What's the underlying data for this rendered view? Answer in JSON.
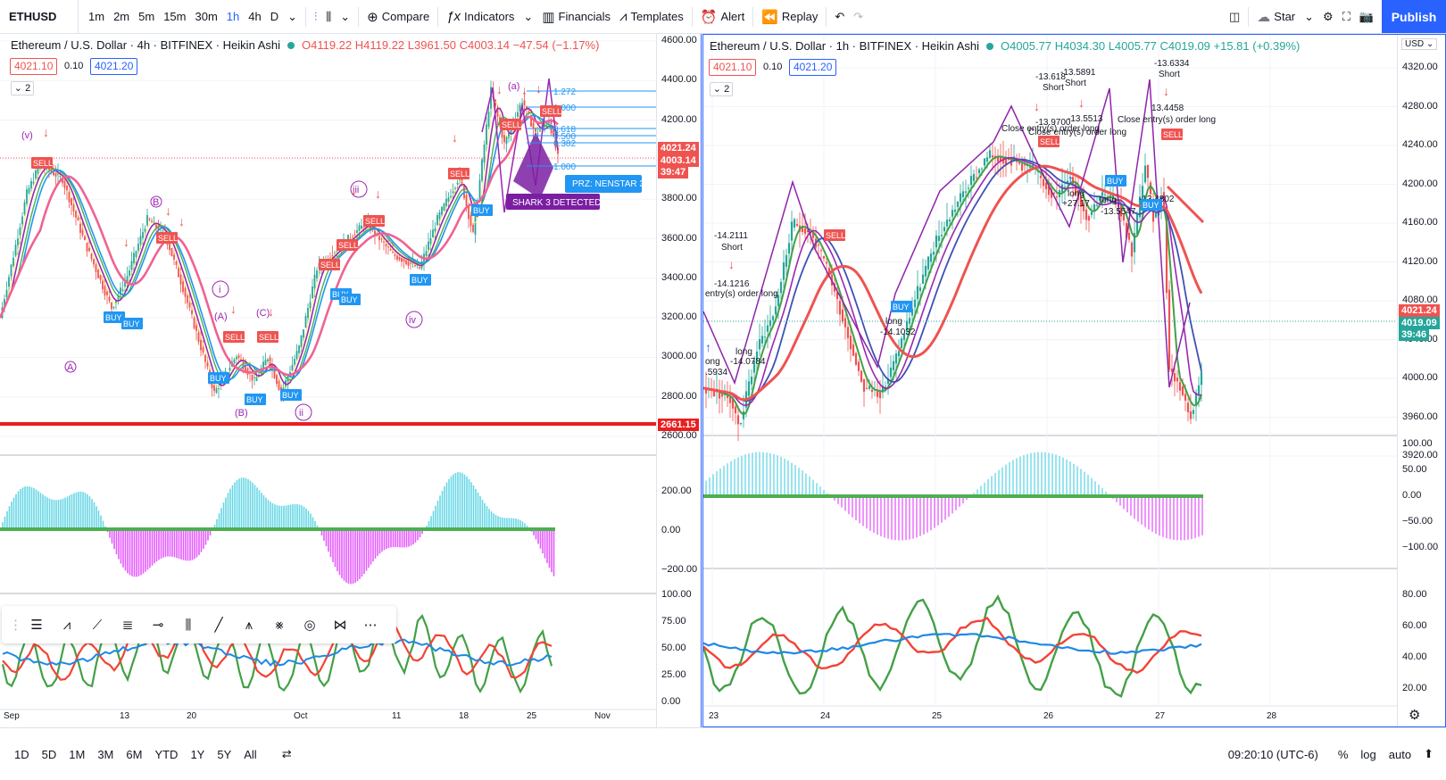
{
  "toolbar": {
    "symbol": "ETHUSD",
    "intervals": [
      "1m",
      "2m",
      "5m",
      "15m",
      "30m",
      "1h",
      "4h",
      "D"
    ],
    "active_interval": "1h",
    "compare": "Compare",
    "indicators": "Indicators",
    "financials": "Financials",
    "templates": "Templates",
    "alert": "Alert",
    "replay": "Replay",
    "star": "Star",
    "publish": "Publish"
  },
  "left": {
    "title": "Ethereum / U.S. Dollar · 4h · BITFINEX · Heikin Ashi",
    "ohlc": "O4119.22 H4119.22 L3961.50 C4003.14 −47.54 (−1.17%)",
    "sell_price": "4021.10",
    "spread": "0.10",
    "buy_price": "4021.20",
    "collapse": "2",
    "price_axis": [
      "4600.00",
      "4400.00",
      "4200.00",
      "4000.00",
      "3800.00",
      "3600.00",
      "3400.00",
      "3200.00",
      "3000.00",
      "2800.00",
      "2600.00"
    ],
    "last_price_tag": "4021.24",
    "close_tag": "4003.14",
    "countdown": "39:47",
    "red_line_tag": "2661.15",
    "osc_axis": [
      "200.00",
      "0.00",
      "−200.00"
    ],
    "rsi_axis": [
      "100.00",
      "75.00",
      "50.00",
      "25.00",
      "0.00"
    ],
    "time_axis": [
      "Sep",
      "13",
      "20",
      "Oct",
      "11",
      "18",
      "25",
      "Nov"
    ],
    "labels": {
      "v": "(v)",
      "B": "B",
      "A": "A",
      "i": "i",
      "iii": "iii",
      "iv": "iv",
      "ii": "ii",
      "a": "(a)",
      "b2": "(B)",
      "C": "(C)",
      "Aparen": "(A)",
      "prz": "PRZ: NENSTAR 3",
      "shark": "SHARK 3 DETECTED",
      "buy": "BUY",
      "sell": "SELL",
      "fib1": "1.272",
      "fib2": "1.000",
      "fib3": "0.618",
      "fib4": "0.500",
      "fib5": "0.382",
      "fib6": "1.000"
    }
  },
  "right": {
    "title": "Ethereum / U.S. Dollar · 1h · BITFINEX · Heikin Ashi",
    "ohlc": "O4005.77 H4034.30 L4005.77 C4019.09 +15.81 (+0.39%)",
    "sell_price": "4021.10",
    "spread": "0.10",
    "buy_price": "4021.20",
    "collapse": "2",
    "currency": "USD",
    "price_axis": [
      "4320.00",
      "4280.00",
      "4240.00",
      "4200.00",
      "4160.00",
      "4120.00",
      "4080.00",
      "4040.00",
      "4000.00",
      "3960.00",
      "3920.00"
    ],
    "last_price_tag": "4021.24",
    "close_tag": "4019.09",
    "countdown": "39:46",
    "osc_axis": [
      "100.00",
      "50.00",
      "0.00",
      "−50.00",
      "−100.00"
    ],
    "rsi_axis": [
      "80.00",
      "60.00",
      "40.00",
      "20.00"
    ],
    "time_axis": [
      "23",
      "24",
      "25",
      "26",
      "27",
      "28"
    ],
    "annotations": [
      "-14.2111",
      "Short",
      "-14.1216",
      "entry(s) order long",
      "long",
      "-14.0784",
      "ong",
      ".5934",
      "long",
      "-14.1032",
      "-13.618",
      "Short",
      "-13.5891",
      "Short",
      "-13.6334",
      "Short",
      "-13.9700",
      "-13.5513",
      "Close entry(s) order long",
      "Close entry(s) order long",
      "Close entry(s) order long",
      "13.4458",
      "long",
      "+27.17",
      "long",
      "-13.5547",
      "-13.4802",
      "SELL",
      "BUY"
    ]
  },
  "bottom": {
    "ranges": [
      "1D",
      "5D",
      "1M",
      "3M",
      "6M",
      "YTD",
      "1Y",
      "5Y",
      "All"
    ],
    "time": "09:20:10 (UTC-6)",
    "percent": "%",
    "log": "log",
    "auto": "auto"
  },
  "colors": {
    "up": "#26a69a",
    "down": "#ef5350",
    "blue": "#2962ff",
    "purple": "#9c27b0",
    "magenta": "#e040fb"
  }
}
